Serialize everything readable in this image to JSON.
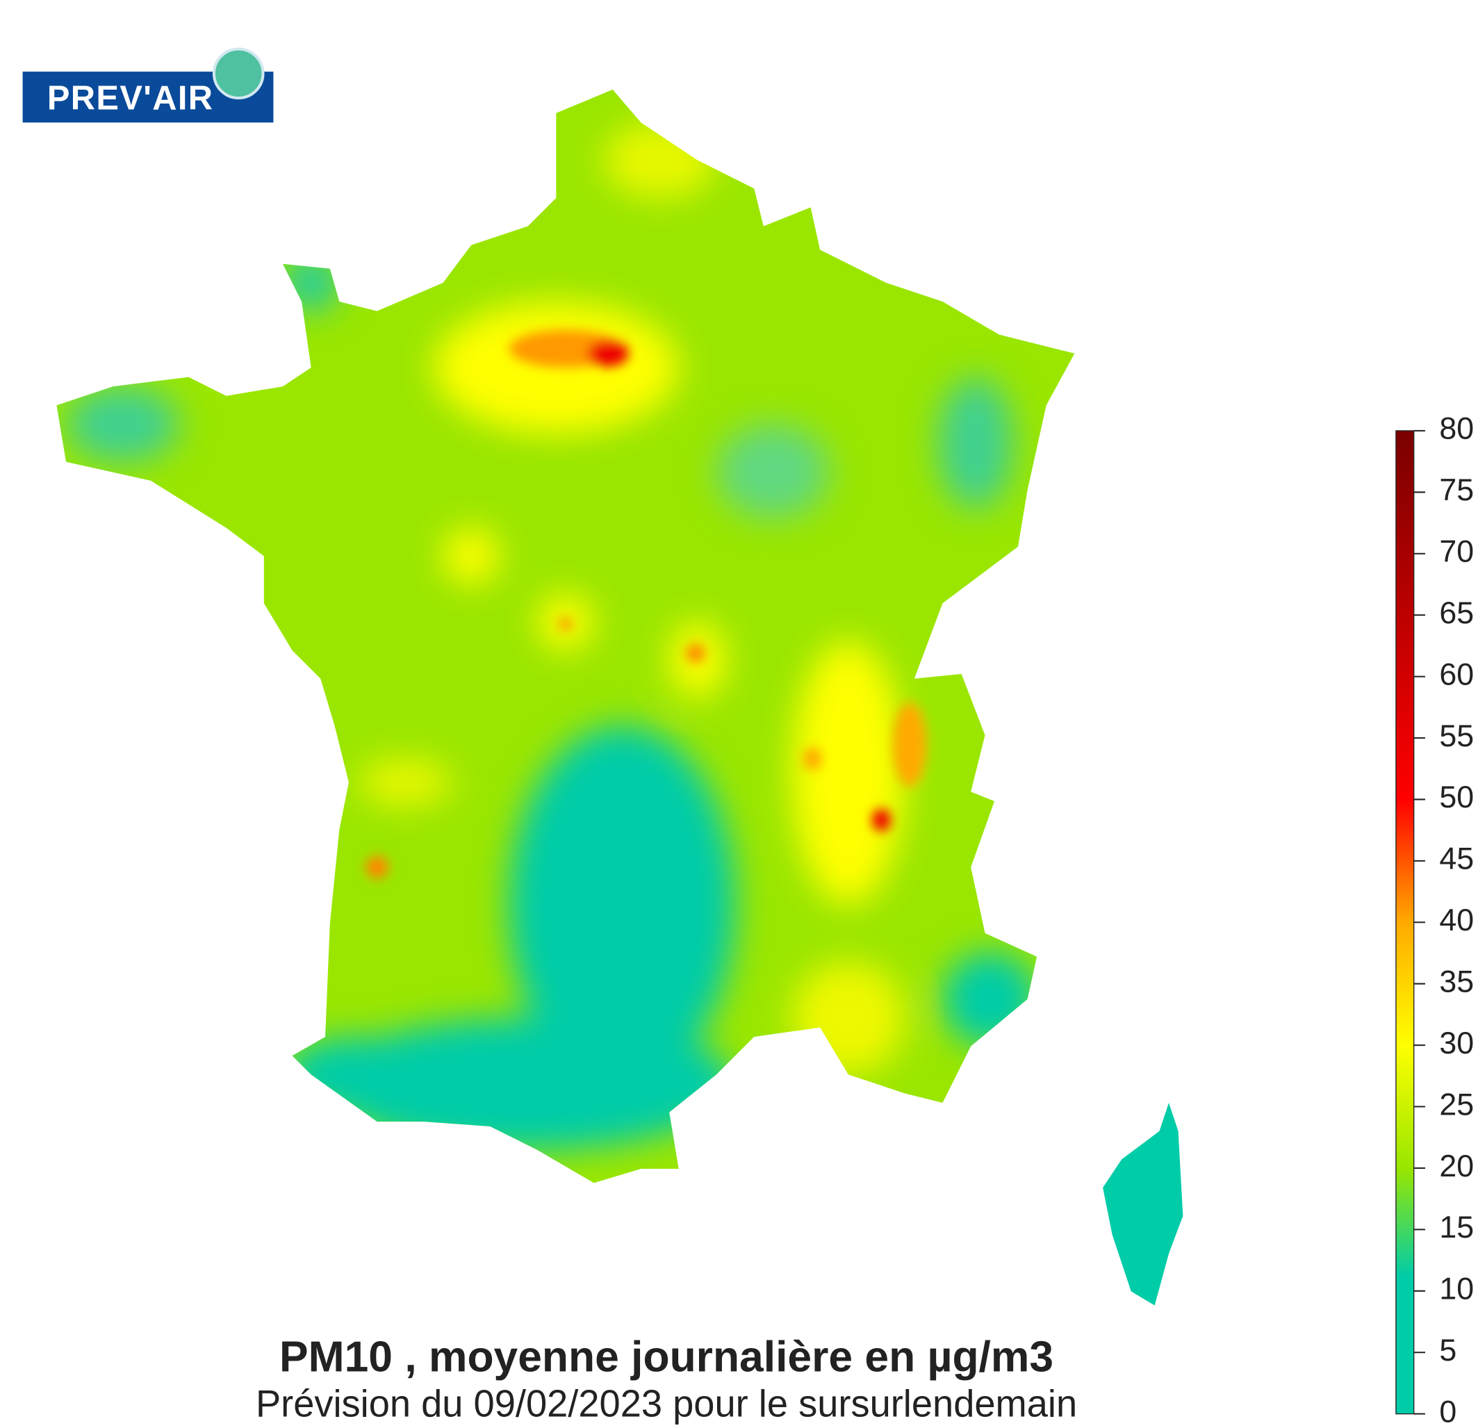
{
  "logo": {
    "text": "PREV'AIR"
  },
  "title": "PM10 , moyenne journalière en µg/m3",
  "subtitle": "Prévision du 09/02/2023 pour le sursurlendemain",
  "colorbar": {
    "range": [
      0,
      80
    ],
    "ticks": [
      0,
      5,
      10,
      15,
      20,
      25,
      30,
      35,
      40,
      45,
      50,
      55,
      60,
      65,
      70,
      75,
      80
    ]
  }
}
